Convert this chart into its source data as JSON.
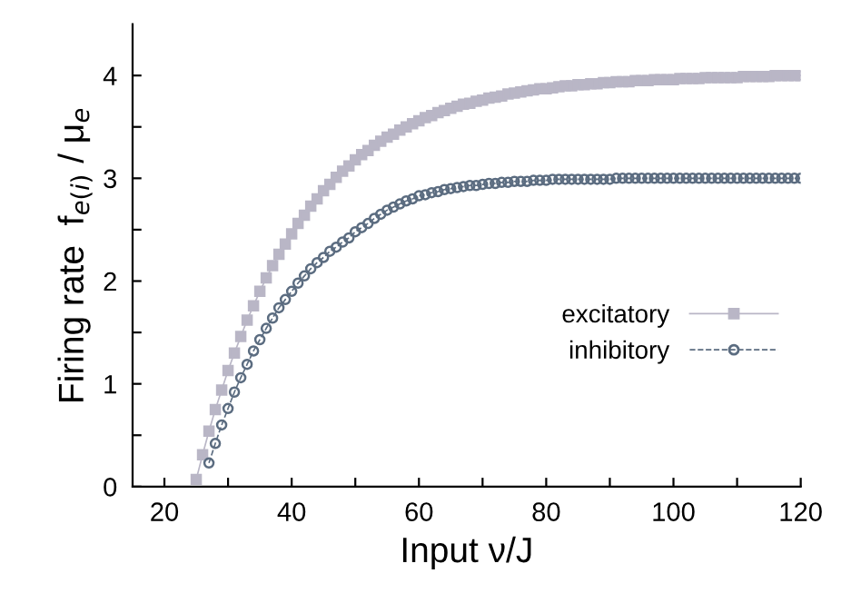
{
  "chart_data": {
    "type": "line",
    "xlabel": "Input ν/J",
    "ylabel": "Firing rate  f$_{e(i)}$ / μ$_{e}$",
    "xlim": [
      15,
      120
    ],
    "ylim": [
      0,
      4.5
    ],
    "xticks": [
      20,
      {
        "value": 30,
        "label": null
      },
      40,
      {
        "value": 50,
        "label": null
      },
      60,
      {
        "value": 70,
        "label": null
      },
      80,
      {
        "value": 90,
        "label": null
      },
      100,
      {
        "value": 110,
        "label": null
      },
      120
    ],
    "yticks": [
      0,
      {
        "value": 0.5,
        "label": null
      },
      1,
      {
        "value": 1.5,
        "label": null
      },
      2,
      {
        "value": 2.5,
        "label": null
      },
      3,
      {
        "value": 3.5,
        "label": null
      },
      4
    ],
    "grid": false,
    "legend": "right",
    "series": [
      {
        "name": "excitatory",
        "color": "#b9b6c6",
        "marker": "square",
        "line_style": "solid",
        "x": [
          25,
          26,
          27,
          28,
          29,
          30,
          31,
          32,
          33,
          34,
          35,
          36,
          37,
          38,
          39,
          40,
          41,
          42,
          43,
          44,
          45,
          46,
          47,
          48,
          49,
          50,
          51,
          52,
          53,
          54,
          55,
          56,
          57,
          58,
          59,
          60,
          61,
          62,
          63,
          64,
          65,
          66,
          67,
          68,
          69,
          70,
          71,
          72,
          73,
          74,
          75,
          76,
          77,
          78,
          79,
          80,
          81,
          82,
          83,
          84,
          85,
          86,
          87,
          88,
          89,
          90,
          91,
          92,
          93,
          94,
          95,
          96,
          97,
          98,
          99,
          100,
          101,
          102,
          103,
          104,
          105,
          106,
          107,
          108,
          109,
          110,
          111,
          112,
          113,
          114,
          115,
          116,
          117,
          118,
          119,
          120
        ],
        "values": [
          0.07,
          0.31,
          0.54,
          0.75,
          0.94,
          1.13,
          1.3,
          1.46,
          1.62,
          1.76,
          1.9,
          2.03,
          2.15,
          2.26,
          2.36,
          2.46,
          2.56,
          2.64,
          2.73,
          2.8,
          2.88,
          2.94,
          3.01,
          3.07,
          3.12,
          3.18,
          3.23,
          3.27,
          3.32,
          3.36,
          3.4,
          3.43,
          3.47,
          3.5,
          3.53,
          3.56,
          3.59,
          3.61,
          3.64,
          3.66,
          3.68,
          3.7,
          3.72,
          3.73,
          3.75,
          3.76,
          3.78,
          3.79,
          3.8,
          3.82,
          3.83,
          3.84,
          3.85,
          3.86,
          3.87,
          3.87,
          3.88,
          3.89,
          3.9,
          3.9,
          3.91,
          3.91,
          3.92,
          3.92,
          3.93,
          3.93,
          3.94,
          3.94,
          3.94,
          3.95,
          3.95,
          3.95,
          3.96,
          3.96,
          3.96,
          3.96,
          3.97,
          3.97,
          3.97,
          3.97,
          3.98,
          3.98,
          3.98,
          3.98,
          3.98,
          3.98,
          3.99,
          3.99,
          3.99,
          3.99,
          3.99,
          4.0,
          4.0,
          4.0,
          4.0,
          4.0
        ]
      },
      {
        "name": "inhibitory",
        "color": "#5b6c80",
        "marker": "circle",
        "line_style": "dashed",
        "x": [
          27,
          28,
          29,
          30,
          31,
          32,
          33,
          34,
          35,
          36,
          37,
          38,
          39,
          40,
          41,
          42,
          43,
          44,
          45,
          46,
          47,
          48,
          49,
          50,
          51,
          52,
          53,
          54,
          55,
          56,
          57,
          58,
          59,
          60,
          61,
          62,
          63,
          64,
          65,
          66,
          67,
          68,
          69,
          70,
          71,
          72,
          73,
          74,
          75,
          76,
          77,
          78,
          79,
          80,
          81,
          82,
          83,
          84,
          85,
          86,
          87,
          88,
          89,
          90,
          91,
          92,
          93,
          94,
          95,
          96,
          97,
          98,
          99,
          100,
          101,
          102,
          103,
          104,
          105,
          106,
          107,
          108,
          109,
          110,
          111,
          112,
          113,
          114,
          115,
          116,
          117,
          118,
          119,
          120
        ],
        "values": [
          0.23,
          0.42,
          0.6,
          0.76,
          0.92,
          1.06,
          1.19,
          1.32,
          1.43,
          1.54,
          1.64,
          1.74,
          1.82,
          1.9,
          1.98,
          2.05,
          2.12,
          2.18,
          2.23,
          2.29,
          2.33,
          2.38,
          2.42,
          2.48,
          2.52,
          2.56,
          2.61,
          2.65,
          2.69,
          2.72,
          2.75,
          2.78,
          2.8,
          2.83,
          2.84,
          2.86,
          2.87,
          2.89,
          2.9,
          2.91,
          2.92,
          2.93,
          2.93,
          2.94,
          2.95,
          2.95,
          2.96,
          2.96,
          2.97,
          2.97,
          2.97,
          2.98,
          2.98,
          2.98,
          2.99,
          2.99,
          2.99,
          2.99,
          2.99,
          2.99,
          2.99,
          2.99,
          2.99,
          2.99,
          3.0,
          3.0,
          3.0,
          3.0,
          3.0,
          3.0,
          3.0,
          3.0,
          3.0,
          3.0,
          3.0,
          3.0,
          3.0,
          3.0,
          3.0,
          3.0,
          3.0,
          3.0,
          3.0,
          3.0,
          3.0,
          3.0,
          3.0,
          3.0,
          3.0,
          3.0,
          3.0,
          3.0,
          3.0,
          3.0
        ]
      }
    ]
  }
}
